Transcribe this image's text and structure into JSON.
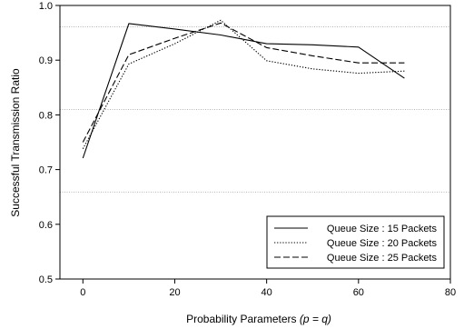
{
  "chart_data": {
    "type": "line",
    "xlabel_main": "Probability Parameters ",
    "xlabel_italic": "(p = q)",
    "ylabel": "Successful Transmission Ratio",
    "xlim": [
      -5,
      80
    ],
    "ylim": [
      0.5,
      1.0
    ],
    "x_ticks": [
      0,
      20,
      40,
      60,
      80
    ],
    "x_tick_labels": [
      "0",
      "20",
      "40",
      "60",
      "80"
    ],
    "y_ticks": [
      0.5,
      0.6,
      0.7,
      0.8,
      0.9,
      1.0
    ],
    "y_tick_labels": [
      "0.5",
      "0.6",
      "0.7",
      "0.8",
      "0.9",
      "1.0"
    ],
    "reference_lines": [
      0.961,
      0.81,
      0.659
    ],
    "x": [
      0,
      10,
      20,
      30,
      40,
      50,
      60,
      70
    ],
    "series": [
      {
        "name": "Queue Size : 15 Packets",
        "style": "solid",
        "values": [
          0.721,
          0.967,
          0.957,
          0.946,
          0.93,
          0.928,
          0.924,
          0.867
        ]
      },
      {
        "name": "Queue Size : 20 Packets",
        "style": "dotted",
        "values": [
          0.738,
          0.893,
          0.93,
          0.973,
          0.899,
          0.884,
          0.876,
          0.88
        ]
      },
      {
        "name": "Queue Size : 25 Packets",
        "style": "dashed",
        "values": [
          0.75,
          0.91,
          0.94,
          0.968,
          0.923,
          0.908,
          0.895,
          0.895
        ]
      }
    ],
    "legend_position": "bottom-right",
    "colors": {
      "line": "#000000",
      "reference": "#9a9a9a"
    }
  }
}
